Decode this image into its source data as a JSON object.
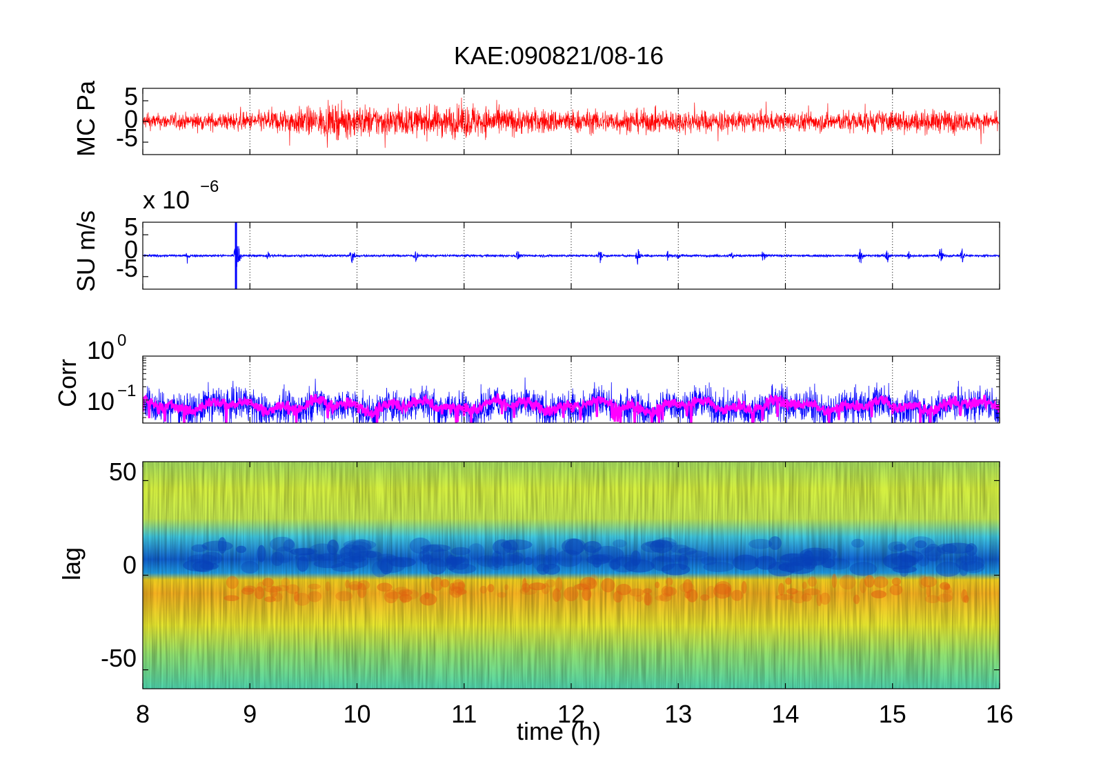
{
  "chart_data": [
    {
      "type": "line",
      "title": "KAE:090821/08-16",
      "ylabel": "MC Pa",
      "xlim": [
        8,
        16
      ],
      "ylim": [
        -8,
        8
      ],
      "yticks": [
        "-5",
        "0",
        "5"
      ],
      "x_grid": true,
      "series": [
        {
          "color": "#ff0000",
          "envelope_time_h": [
            8,
            9,
            9.5,
            10,
            10.5,
            11,
            11.5,
            12,
            13,
            14,
            14.5,
            15,
            15.5,
            16
          ],
          "envelope_amplitude_pa": [
            1.6,
            2,
            3,
            3.5,
            3,
            3.6,
            2.8,
            2.5,
            2.5,
            2,
            2.2,
            2.4,
            2.4,
            1.6
          ]
        }
      ]
    },
    {
      "type": "line",
      "ylabel": "SU m/s",
      "exponent_label": "x 10",
      "exponent_power": "−6",
      "xlim": [
        8,
        16
      ],
      "ylim": [
        -8,
        8
      ],
      "yticks": [
        "-5",
        "0",
        "5"
      ],
      "x_grid": true,
      "series": [
        {
          "color": "#0000ff",
          "event_time_h": [
            8.42,
            8.87,
            9.17,
            9.95,
            10.55,
            11.5,
            12.27,
            12.62,
            12.9,
            13.0,
            13.5,
            13.8,
            14.7,
            14.95,
            15.15,
            15.45,
            15.65
          ],
          "event_amplitude_1e6ms": [
            1.5,
            8,
            1.5,
            3.5,
            1.8,
            1.5,
            2.2,
            2.5,
            1.5,
            1.5,
            1.2,
            1.8,
            2.5,
            2.5,
            1.2,
            2.8,
            2.4
          ]
        }
      ]
    },
    {
      "type": "line",
      "ylabel": "Corr",
      "y_scale": "log",
      "xlim": [
        8,
        16
      ],
      "ylim": [
        0.03,
        1
      ],
      "ytick_labels": [
        {
          "base": "10",
          "exp": "0"
        },
        {
          "base": "10",
          "exp": "−1"
        }
      ],
      "x_grid": true,
      "series": [
        {
          "color": "#0000ff",
          "level": 0.07
        },
        {
          "color": "#ff00ff",
          "level": 0.075
        }
      ]
    },
    {
      "type": "heatmap",
      "xlabel": "time (h)",
      "ylabel": "lag",
      "xlim": [
        8,
        16
      ],
      "ylim": [
        -60,
        60
      ],
      "xticks": [
        "8",
        "9",
        "10",
        "11",
        "12",
        "13",
        "14",
        "15",
        "16"
      ],
      "yticks": [
        "-50",
        "0",
        "50"
      ],
      "colormap": "jet",
      "bands": [
        {
          "lag_from": 60,
          "lag_to": 30,
          "value": 0.55
        },
        {
          "lag_from": 30,
          "lag_to": 0,
          "value": 0.15
        },
        {
          "lag_from": 0,
          "lag_to": -30,
          "value": 0.75
        },
        {
          "lag_from": -30,
          "lag_to": -60,
          "value": 0.5
        }
      ]
    }
  ]
}
